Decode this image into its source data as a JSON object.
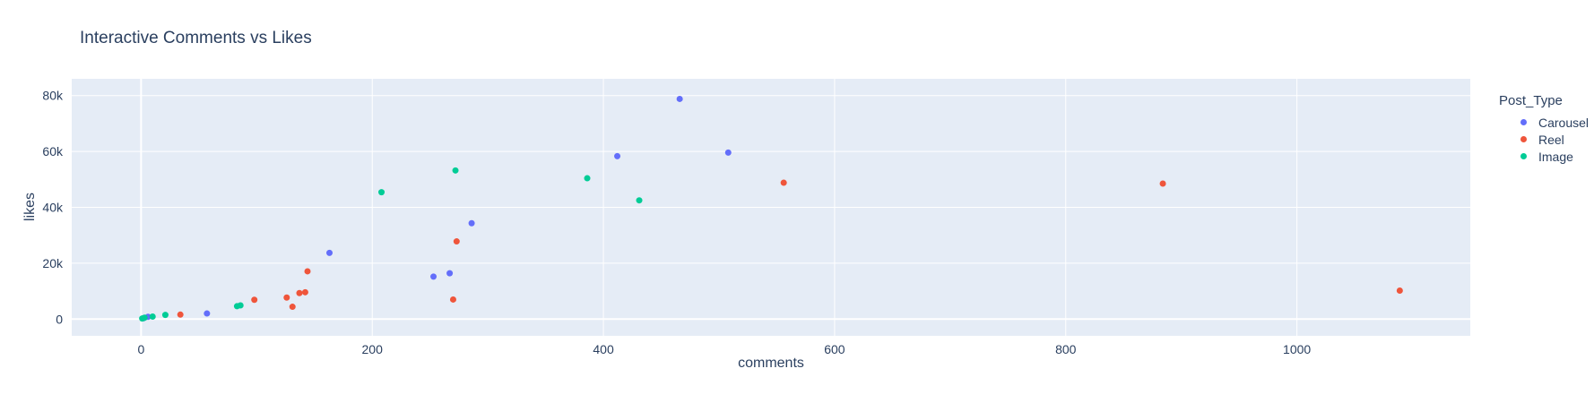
{
  "chart_data": {
    "type": "scatter",
    "title": "Interactive Comments vs Likes",
    "xlabel": "comments",
    "ylabel": "likes",
    "xlim": [
      -60,
      1150
    ],
    "ylim": [
      -6000,
      86000
    ],
    "x_ticks": [
      0,
      200,
      400,
      600,
      800,
      1000
    ],
    "x_tick_labels": [
      "0",
      "200",
      "400",
      "600",
      "800",
      "1000"
    ],
    "y_ticks": [
      0,
      20000,
      40000,
      60000,
      80000
    ],
    "y_tick_labels": [
      "0",
      "20k",
      "40k",
      "60k",
      "80k"
    ],
    "grid": true,
    "legend_title": "Post_Type",
    "legend_position": "right",
    "series": [
      {
        "name": "Carousel",
        "color": "#636efa",
        "points": [
          [
            466,
            78800
          ],
          [
            412,
            58300
          ],
          [
            508,
            59600
          ],
          [
            286,
            34300
          ],
          [
            163,
            23700
          ],
          [
            267,
            16400
          ],
          [
            253,
            15200
          ],
          [
            57,
            2000
          ],
          [
            6,
            800
          ],
          [
            2,
            300
          ]
        ]
      },
      {
        "name": "Reel",
        "color": "#ef553b",
        "points": [
          [
            556,
            48800
          ],
          [
            884,
            48500
          ],
          [
            1089,
            10200
          ],
          [
            273,
            27800
          ],
          [
            144,
            17100
          ],
          [
            98,
            6900
          ],
          [
            126,
            7700
          ],
          [
            137,
            9300
          ],
          [
            142,
            9600
          ],
          [
            131,
            4400
          ],
          [
            270,
            7000
          ],
          [
            34,
            1600
          ]
        ]
      },
      {
        "name": "Image",
        "color": "#00cc96",
        "points": [
          [
            208,
            45400
          ],
          [
            272,
            53200
          ],
          [
            386,
            50400
          ],
          [
            431,
            42500
          ],
          [
            21,
            1500
          ],
          [
            83,
            4600
          ],
          [
            86,
            4900
          ],
          [
            10,
            900
          ],
          [
            3,
            500
          ],
          [
            1,
            200
          ]
        ]
      }
    ]
  }
}
